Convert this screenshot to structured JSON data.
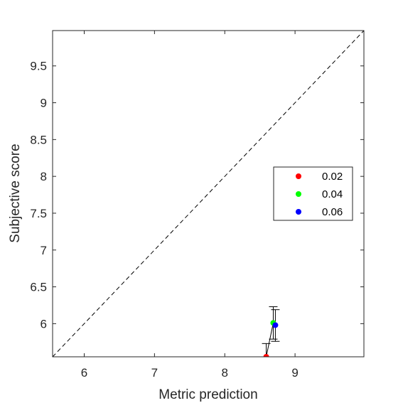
{
  "chart_data": {
    "type": "scatter",
    "xlabel": "Metric prediction",
    "ylabel": "Subjective score",
    "xlim": [
      5.55,
      9.98
    ],
    "ylim": [
      5.55,
      9.98
    ],
    "xticks": [
      6,
      7,
      8,
      9
    ],
    "yticks": [
      6,
      6.5,
      7,
      7.5,
      8,
      8.5,
      9,
      9.5
    ],
    "xtick_labels": [
      "6",
      "7",
      "8",
      "9"
    ],
    "ytick_labels": [
      "6",
      "6.5",
      "7",
      "7.5",
      "8",
      "8.5",
      "9",
      "9.5"
    ],
    "reference_line": "y = x (dashed)",
    "grid": false,
    "legend_position": "right",
    "series": [
      {
        "name": "0.02",
        "color": "#ff0000",
        "x": 8.59,
        "y": 5.55,
        "err_low": 5.55,
        "err_high": 5.73
      },
      {
        "name": "0.04",
        "color": "#00ff00",
        "x": 8.69,
        "y": 6.01,
        "err_low": 5.79,
        "err_high": 6.23
      },
      {
        "name": "0.06",
        "color": "#0000ff",
        "x": 8.72,
        "y": 5.98,
        "err_low": 5.76,
        "err_high": 6.19
      }
    ],
    "connecting_line": true
  }
}
